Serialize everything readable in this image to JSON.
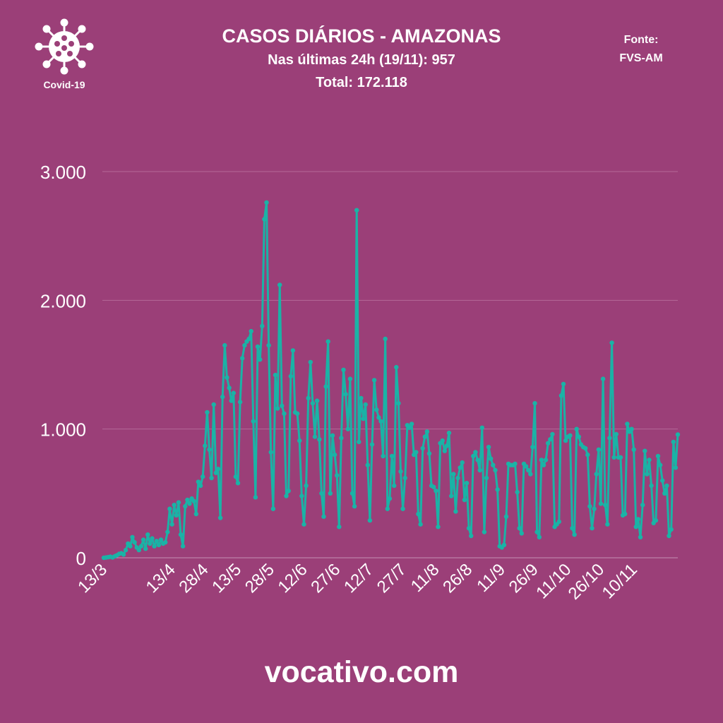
{
  "header": {
    "title": "CASOS DIÁRIOS - AMAZONAS",
    "subtitle": "Nas últimas 24h (19/11): 957",
    "total": "Total: 172.118"
  },
  "logo": {
    "label": "Covid-19",
    "icon": "virus-icon"
  },
  "source": {
    "line1": "Fonte:",
    "line2": "FVS-AM"
  },
  "footer": {
    "site": "vocativo.com"
  },
  "colors": {
    "background": "#9b3f78",
    "line": "#1ab3a6",
    "grid": "#b46a98",
    "text": "#ffffff"
  },
  "chart_data": {
    "type": "line",
    "title": "CASOS DIÁRIOS - AMAZONAS",
    "xlabel": "",
    "ylabel": "",
    "ylim": [
      0,
      3000
    ],
    "yticks": [
      0,
      1000,
      2000,
      3000
    ],
    "ytick_labels": [
      "0",
      "1.000",
      "2.000",
      "3.000"
    ],
    "xtick_labels": [
      "13/3",
      "13/4",
      "28/4",
      "13/5",
      "28/5",
      "12/6",
      "27/6",
      "12/7",
      "27/7",
      "11/8",
      "26/8",
      "11/9",
      "26/9",
      "11/10",
      "26/10",
      "10/11"
    ],
    "xtick_days": [
      0,
      31,
      46,
      61,
      76,
      91,
      106,
      121,
      136,
      151,
      166,
      181,
      196,
      211,
      226,
      241
    ],
    "x_start": "13/3",
    "grid": true,
    "legend": "none",
    "series": [
      {
        "values": [
          0,
          2,
          5,
          8,
          3,
          12,
          20,
          30,
          35,
          25,
          60,
          110,
          90,
          160,
          120,
          80,
          60,
          90,
          140,
          70,
          180,
          110,
          150,
          90,
          130,
          100,
          140,
          110,
          120,
          200,
          380,
          260,
          410,
          330,
          430,
          180,
          90,
          400,
          450,
          420,
          460,
          440,
          340,
          590,
          560,
          630,
          870,
          1130,
          840,
          620,
          1190,
          660,
          690,
          310,
          1250,
          1650,
          1400,
          1320,
          1220,
          1280,
          630,
          580,
          1210,
          1550,
          1650,
          1680,
          1700,
          1760,
          1060,
          470,
          1640,
          1540,
          1800,
          2630,
          2760,
          1650,
          820,
          380,
          1420,
          1160,
          2120,
          1180,
          1120,
          480,
          520,
          1410,
          1610,
          1130,
          1120,
          910,
          480,
          260,
          560,
          1240,
          1520,
          1200,
          940,
          1220,
          920,
          500,
          320,
          1330,
          1680,
          500,
          950,
          800,
          640,
          240,
          930,
          1460,
          1270,
          1000,
          1390,
          500,
          400,
          2700,
          900,
          1240,
          1080,
          1190,
          720,
          290,
          880,
          1380,
          1150,
          1090,
          1060,
          790,
          1700,
          380,
          460,
          790,
          560,
          1480,
          1200,
          670,
          380,
          620,
          1030,
          1010,
          1040,
          800,
          820,
          340,
          260,
          850,
          940,
          980,
          810,
          560,
          550,
          520,
          240,
          890,
          910,
          830,
          870,
          970,
          480,
          650,
          360,
          620,
          700,
          740,
          450,
          580,
          230,
          170,
          790,
          820,
          760,
          680,
          1010,
          200,
          620,
          860,
          770,
          720,
          680,
          530,
          90,
          80,
          100,
          320,
          730,
          720,
          720,
          730,
          510,
          230,
          190,
          730,
          710,
          680,
          650,
          860,
          1200,
          200,
          160,
          760,
          720,
          760,
          890,
          920,
          960,
          240,
          260,
          280,
          1260,
          1350,
          910,
          940,
          950,
          230,
          180,
          1000,
          940,
          880,
          860,
          850,
          800,
          400,
          230,
          380,
          650,
          840,
          420,
          1390,
          410,
          260,
          930,
          1670,
          780,
          960,
          780,
          780,
          330,
          340,
          1040,
          980,
          1000,
          840,
          240,
          300,
          160,
          410,
          830,
          650,
          760,
          560,
          270,
          290,
          790,
          720,
          600,
          500,
          560,
          170,
          220,
          900,
          700,
          957
        ]
      }
    ]
  }
}
